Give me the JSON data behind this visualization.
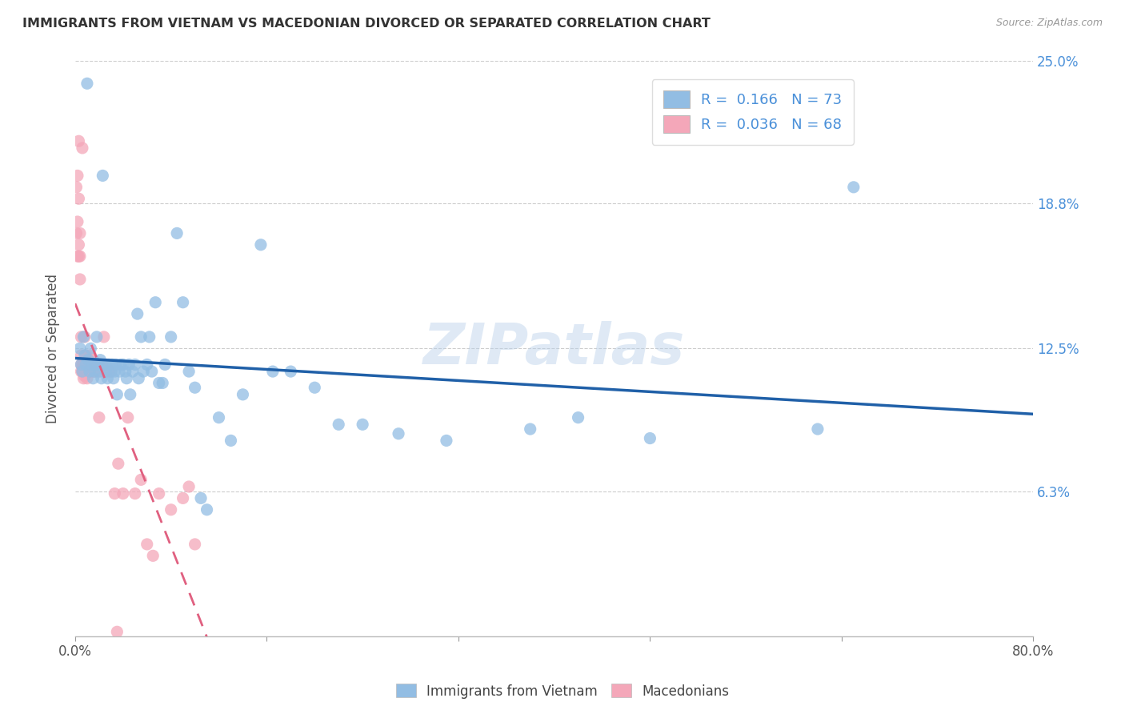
{
  "title": "IMMIGRANTS FROM VIETNAM VS MACEDONIAN DIVORCED OR SEPARATED CORRELATION CHART",
  "source": "Source: ZipAtlas.com",
  "ylabel": "Divorced or Separated",
  "xlim": [
    0.0,
    0.8
  ],
  "ylim": [
    0.0,
    0.25
  ],
  "xticks": [
    0.0,
    0.16,
    0.32,
    0.48,
    0.64,
    0.8
  ],
  "xticklabels": [
    "0.0%",
    "",
    "",
    "",
    "",
    "80.0%"
  ],
  "yticks_grid": [
    0.063,
    0.125,
    0.188,
    0.25
  ],
  "ytick_right_labels": [
    "6.3%",
    "12.5%",
    "18.8%",
    "25.0%"
  ],
  "legend_labels": [
    "Immigrants from Vietnam",
    "Macedonians"
  ],
  "blue_color": "#92bde3",
  "pink_color": "#f4a7b9",
  "blue_line_color": "#2060a8",
  "pink_line_color": "#e06080",
  "R_blue": 0.166,
  "N_blue": 73,
  "R_pink": 0.036,
  "N_pink": 68,
  "watermark": "ZIPatlas",
  "blue_scatter_x": [
    0.004,
    0.005,
    0.006,
    0.007,
    0.008,
    0.009,
    0.01,
    0.011,
    0.012,
    0.013,
    0.014,
    0.015,
    0.016,
    0.017,
    0.018,
    0.019,
    0.02,
    0.021,
    0.022,
    0.023,
    0.025,
    0.026,
    0.027,
    0.028,
    0.03,
    0.031,
    0.032,
    0.033,
    0.034,
    0.035,
    0.037,
    0.038,
    0.04,
    0.042,
    0.043,
    0.045,
    0.046,
    0.048,
    0.05,
    0.052,
    0.053,
    0.055,
    0.057,
    0.06,
    0.062,
    0.064,
    0.067,
    0.07,
    0.073,
    0.075,
    0.08,
    0.085,
    0.09,
    0.095,
    0.1,
    0.105,
    0.11,
    0.12,
    0.13,
    0.14,
    0.155,
    0.165,
    0.18,
    0.2,
    0.22,
    0.24,
    0.27,
    0.31,
    0.38,
    0.42,
    0.48,
    0.62,
    0.65
  ],
  "blue_scatter_y": [
    0.125,
    0.118,
    0.115,
    0.13,
    0.122,
    0.118,
    0.24,
    0.12,
    0.115,
    0.125,
    0.118,
    0.112,
    0.115,
    0.118,
    0.13,
    0.118,
    0.115,
    0.12,
    0.112,
    0.2,
    0.118,
    0.115,
    0.112,
    0.118,
    0.115,
    0.118,
    0.112,
    0.115,
    0.118,
    0.105,
    0.115,
    0.118,
    0.118,
    0.115,
    0.112,
    0.118,
    0.105,
    0.115,
    0.118,
    0.14,
    0.112,
    0.13,
    0.115,
    0.118,
    0.13,
    0.115,
    0.145,
    0.11,
    0.11,
    0.118,
    0.13,
    0.175,
    0.145,
    0.115,
    0.108,
    0.06,
    0.055,
    0.095,
    0.085,
    0.105,
    0.17,
    0.115,
    0.115,
    0.108,
    0.092,
    0.092,
    0.088,
    0.085,
    0.09,
    0.095,
    0.086,
    0.09,
    0.195
  ],
  "pink_scatter_x": [
    0.001,
    0.001,
    0.002,
    0.002,
    0.002,
    0.003,
    0.003,
    0.003,
    0.003,
    0.004,
    0.004,
    0.004,
    0.005,
    0.005,
    0.005,
    0.005,
    0.006,
    0.006,
    0.006,
    0.007,
    0.007,
    0.007,
    0.007,
    0.008,
    0.008,
    0.008,
    0.009,
    0.009,
    0.009,
    0.01,
    0.01,
    0.01,
    0.011,
    0.011,
    0.012,
    0.012,
    0.013,
    0.013,
    0.014,
    0.015,
    0.015,
    0.016,
    0.016,
    0.017,
    0.018,
    0.019,
    0.02,
    0.021,
    0.022,
    0.024,
    0.026,
    0.028,
    0.03,
    0.033,
    0.036,
    0.04,
    0.044,
    0.05,
    0.055,
    0.06,
    0.065,
    0.07,
    0.08,
    0.09,
    0.095,
    0.1,
    0.02,
    0.035
  ],
  "pink_scatter_y": [
    0.195,
    0.175,
    0.2,
    0.165,
    0.18,
    0.165,
    0.17,
    0.19,
    0.215,
    0.155,
    0.165,
    0.175,
    0.118,
    0.122,
    0.115,
    0.13,
    0.118,
    0.115,
    0.212,
    0.118,
    0.115,
    0.112,
    0.118,
    0.13,
    0.115,
    0.113,
    0.122,
    0.115,
    0.118,
    0.12,
    0.115,
    0.112,
    0.118,
    0.115,
    0.115,
    0.118,
    0.122,
    0.115,
    0.118,
    0.12,
    0.115,
    0.118,
    0.115,
    0.118,
    0.115,
    0.118,
    0.118,
    0.115,
    0.118,
    0.13,
    0.118,
    0.115,
    0.115,
    0.062,
    0.075,
    0.062,
    0.095,
    0.062,
    0.068,
    0.04,
    0.035,
    0.062,
    0.055,
    0.06,
    0.065,
    0.04,
    0.095,
    0.002
  ]
}
